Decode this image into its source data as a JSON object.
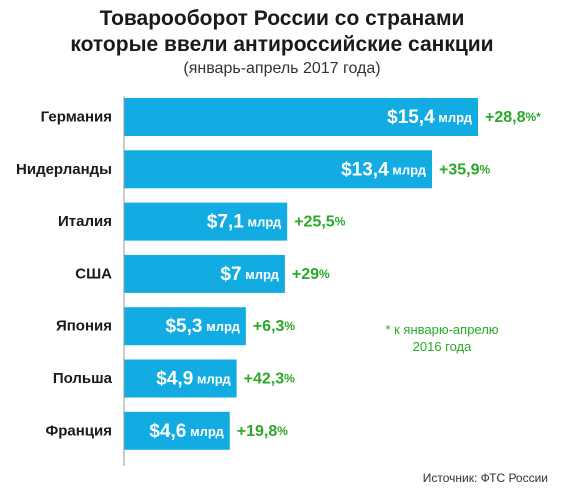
{
  "chart_data": {
    "type": "bar",
    "orientation": "horizontal",
    "title": "Товарооборот России со странами",
    "title_line2": "которые ввели антироссийские санкции",
    "subtitle": "(январь-апрель 2017 года)",
    "categories": [
      "Германия",
      "Нидерланды",
      "Италия",
      "США",
      "Япония",
      "Польша",
      "Франция"
    ],
    "values": [
      15.4,
      13.4,
      7.1,
      7.0,
      5.3,
      4.9,
      4.6
    ],
    "value_labels": [
      {
        "main": "$15,4",
        "unit": "млрд"
      },
      {
        "main": "$13,4",
        "unit": "млрд"
      },
      {
        "main": "$7,1",
        "unit": "млрд"
      },
      {
        "main": "$7",
        "unit": "млрд"
      },
      {
        "main": "$5,3",
        "unit": "млрд"
      },
      {
        "main": "$4,9",
        "unit": "млрд"
      },
      {
        "main": "$4,6",
        "unit": "млрд"
      }
    ],
    "changes": [
      {
        "main": "+28,8",
        "suffix": "%*"
      },
      {
        "main": "+35,9",
        "suffix": "%"
      },
      {
        "main": "+25,5",
        "suffix": "%"
      },
      {
        "main": "+29",
        "suffix": "%"
      },
      {
        "main": "+6,3",
        "suffix": "%"
      },
      {
        "main": "+42,3",
        "suffix": "%"
      },
      {
        "main": "+19,8",
        "suffix": "%"
      }
    ],
    "xlim": [
      0,
      15.4
    ],
    "grid": false,
    "colors": {
      "bar": "#12ace3",
      "bar_text": "#ffffff",
      "change": "#2aa82a",
      "label": "#1a1a1a",
      "axis": "#999999"
    },
    "annotation": {
      "line1": "* к январю-апрелю",
      "line2": "2016 года"
    },
    "source": "Источник: ФТС России"
  }
}
